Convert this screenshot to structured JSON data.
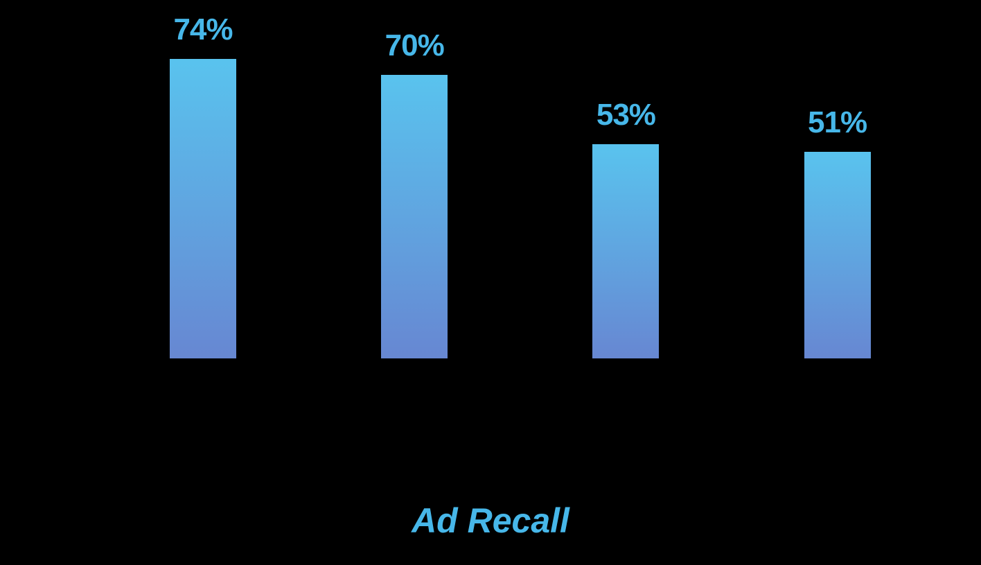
{
  "chart_data": {
    "type": "bar",
    "xlabel": "Ad Recall",
    "values": [
      74,
      70,
      53,
      51
    ],
    "labels": [
      "74%",
      "70%",
      "53%",
      "51%"
    ],
    "ylim": [
      0,
      100
    ],
    "grid": false,
    "legend_position": "none",
    "background": "#000000",
    "colors": {
      "bar_gradient_top": "#59C3EE",
      "bar_gradient_bottom": "#6787D2",
      "value_label": "#47B7E9",
      "axis_title": "#47B7E9"
    }
  }
}
